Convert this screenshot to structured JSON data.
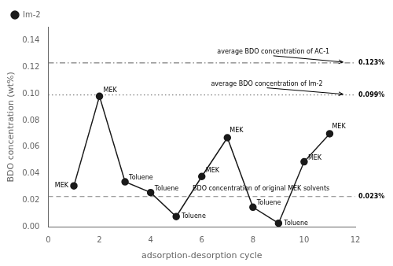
{
  "chart_data": {
    "type": "line",
    "x": [
      1,
      2,
      3,
      4,
      5,
      6,
      7,
      8,
      9,
      10,
      11
    ],
    "series": [
      {
        "name": "Im-2",
        "color": "#1a1a1a",
        "marker": "circle",
        "line_style": "solid",
        "values": [
          0.031,
          0.098,
          0.034,
          0.026,
          0.008,
          0.038,
          0.067,
          0.015,
          0.003,
          0.049,
          0.07
        ],
        "labels": [
          "MEK",
          "MEK",
          "Toluene",
          "Toluene",
          "Toluene",
          "MEK",
          "MEK",
          "Toluene",
          "Toluene",
          "MEK",
          "MEK"
        ]
      }
    ],
    "hlines": [
      {
        "value": 0.123,
        "color": "#808080",
        "line_style": "dashdot",
        "label": "average BDO concentration of AC-1",
        "value_label": "0.123%"
      },
      {
        "value": 0.099,
        "color": "#808080",
        "line_style": "dotted",
        "label": "average BDO concentration of Im-2",
        "value_label": "0.099%"
      },
      {
        "value": 0.023,
        "color": "#808080",
        "line_style": "dashed",
        "label": "BDO concentration of original MEK solvents",
        "value_label": "0.023%"
      }
    ],
    "xlabel": "adsorption-desorption cycle",
    "ylabel": "BDO concentration (wt%)",
    "xlim": [
      0,
      12
    ],
    "xticks": [
      0,
      2,
      4,
      6,
      8,
      10,
      12
    ],
    "ylim": [
      0,
      0.15
    ],
    "yticks": [
      {
        "value": 0,
        "label": "0.00"
      },
      0.02,
      0.04,
      0.06,
      0.08,
      {
        "value": 0.1,
        "label": "0.10"
      },
      0.12,
      0.14
    ],
    "legend": "upper left",
    "grid": false
  }
}
